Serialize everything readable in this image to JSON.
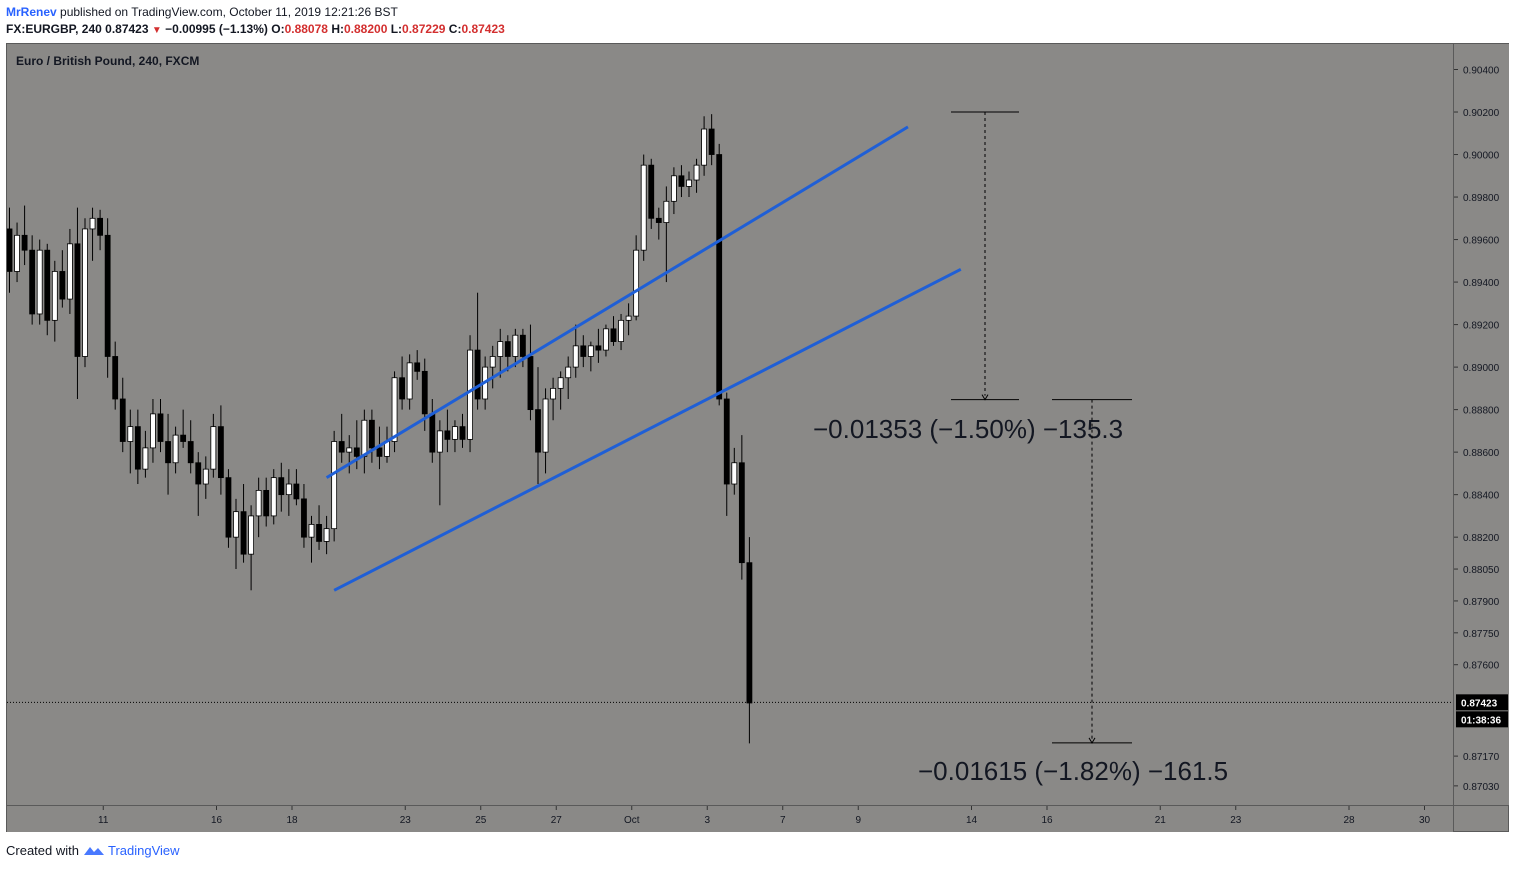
{
  "header": {
    "author": "MrRenev",
    "published_text": "published on TradingView.com, October 11, 2019 12:21:26 BST",
    "symbol": "FX:EURGBP, 240",
    "last": "0.87423",
    "change": "−0.00995 (−1.13%)",
    "open_label": "O:",
    "open": "0.88078",
    "high_label": "H:",
    "high": "0.88200",
    "low_label": "L:",
    "low": "0.87229",
    "close_label": "C:",
    "close": "0.87423"
  },
  "legend": "Euro / British Pound, 240, FXCM",
  "footer": {
    "created_with": "Created with",
    "brand": "TradingView"
  },
  "colors": {
    "background": "#8a8987",
    "channel": "#1f5fd6",
    "bull_body": "#ffffff",
    "bear_body": "#000000",
    "wick": "#000000",
    "price_tag": "#000000"
  },
  "chart_data": {
    "type": "candlestick",
    "interval": "240",
    "ylim": [
      0.8694,
      0.9052
    ],
    "y_ticks": [
      0.904,
      0.902,
      0.9,
      0.898,
      0.896,
      0.894,
      0.892,
      0.89,
      0.888,
      0.886,
      0.884,
      0.882,
      0.8805,
      0.879,
      0.8775,
      0.876,
      0.8717,
      0.8703
    ],
    "y_tick_labels": [
      "0.90400",
      "0.90200",
      "0.90000",
      "0.89800",
      "0.89600",
      "0.89400",
      "0.89200",
      "0.89000",
      "0.88800",
      "0.88600",
      "0.88400",
      "0.88200",
      "0.88050",
      "0.87900",
      "0.87750",
      "0.87600",
      "0.87170",
      "0.87030"
    ],
    "x_tick_labels": [
      "11",
      "16",
      "18",
      "23",
      "25",
      "27",
      "Oct",
      "3",
      "7",
      "9",
      "14",
      "16",
      "21",
      "23",
      "28",
      "30"
    ],
    "x_tick_bars": [
      5,
      20,
      30,
      45,
      55,
      65,
      75,
      85,
      95,
      105,
      120,
      130,
      145,
      155,
      170,
      180
    ],
    "last_price": 0.87423,
    "last_price_label": "0.87423",
    "countdown": "01:38:36",
    "candles": [
      [
        0.8965,
        0.8975,
        0.8935,
        0.8945
      ],
      [
        0.8945,
        0.8968,
        0.894,
        0.8962
      ],
      [
        0.8962,
        0.8976,
        0.8948,
        0.8955
      ],
      [
        0.8955,
        0.8962,
        0.892,
        0.8925
      ],
      [
        0.8925,
        0.896,
        0.892,
        0.8955
      ],
      [
        0.8955,
        0.8958,
        0.8915,
        0.8922
      ],
      [
        0.8922,
        0.895,
        0.8912,
        0.8945
      ],
      [
        0.8945,
        0.8955,
        0.8928,
        0.8932
      ],
      [
        0.8932,
        0.8965,
        0.8925,
        0.8958
      ],
      [
        0.8958,
        0.8975,
        0.8885,
        0.8905
      ],
      [
        0.8905,
        0.897,
        0.89,
        0.8965
      ],
      [
        0.8965,
        0.8975,
        0.895,
        0.897
      ],
      [
        0.897,
        0.8974,
        0.8955,
        0.8962
      ],
      [
        0.8962,
        0.897,
        0.8895,
        0.8905
      ],
      [
        0.8905,
        0.8912,
        0.888,
        0.8885
      ],
      [
        0.8885,
        0.8895,
        0.886,
        0.8865
      ],
      [
        0.8865,
        0.888,
        0.885,
        0.8872
      ],
      [
        0.8872,
        0.888,
        0.8845,
        0.8852
      ],
      [
        0.8852,
        0.887,
        0.8848,
        0.8862
      ],
      [
        0.8862,
        0.8885,
        0.8855,
        0.8878
      ],
      [
        0.8878,
        0.8885,
        0.886,
        0.8865
      ],
      [
        0.8865,
        0.8878,
        0.884,
        0.8855
      ],
      [
        0.8855,
        0.8872,
        0.885,
        0.8868
      ],
      [
        0.8868,
        0.888,
        0.8862,
        0.8865
      ],
      [
        0.8865,
        0.8875,
        0.885,
        0.8855
      ],
      [
        0.8855,
        0.886,
        0.883,
        0.8845
      ],
      [
        0.8845,
        0.8858,
        0.8838,
        0.8852
      ],
      [
        0.8852,
        0.8878,
        0.8848,
        0.8872
      ],
      [
        0.8872,
        0.8882,
        0.884,
        0.8848
      ],
      [
        0.8848,
        0.8852,
        0.8815,
        0.882
      ],
      [
        0.882,
        0.8838,
        0.8805,
        0.8832
      ],
      [
        0.8832,
        0.8845,
        0.8808,
        0.8812
      ],
      [
        0.8812,
        0.8835,
        0.8795,
        0.883
      ],
      [
        0.883,
        0.8848,
        0.882,
        0.8842
      ],
      [
        0.8842,
        0.8848,
        0.8825,
        0.883
      ],
      [
        0.883,
        0.8852,
        0.8826,
        0.8848
      ],
      [
        0.8848,
        0.8855,
        0.8832,
        0.884
      ],
      [
        0.884,
        0.8852,
        0.883,
        0.8845
      ],
      [
        0.8845,
        0.8852,
        0.8835,
        0.8838
      ],
      [
        0.8838,
        0.8845,
        0.8815,
        0.882
      ],
      [
        0.882,
        0.883,
        0.8808,
        0.8826
      ],
      [
        0.8826,
        0.8835,
        0.8814,
        0.8818
      ],
      [
        0.8818,
        0.883,
        0.8812,
        0.8824
      ],
      [
        0.8824,
        0.887,
        0.8818,
        0.8865
      ],
      [
        0.8865,
        0.8878,
        0.8855,
        0.886
      ],
      [
        0.886,
        0.8868,
        0.885,
        0.8862
      ],
      [
        0.8862,
        0.8875,
        0.8852,
        0.8858
      ],
      [
        0.8858,
        0.888,
        0.885,
        0.8875
      ],
      [
        0.8875,
        0.888,
        0.8855,
        0.8862
      ],
      [
        0.8862,
        0.8872,
        0.8852,
        0.8858
      ],
      [
        0.8858,
        0.8872,
        0.8855,
        0.8865
      ],
      [
        0.8865,
        0.8898,
        0.886,
        0.8895
      ],
      [
        0.8895,
        0.8905,
        0.888,
        0.8885
      ],
      [
        0.8885,
        0.8906,
        0.888,
        0.8902
      ],
      [
        0.8902,
        0.8908,
        0.8894,
        0.8898
      ],
      [
        0.8898,
        0.8904,
        0.887,
        0.8878
      ],
      [
        0.8878,
        0.8885,
        0.8855,
        0.886
      ],
      [
        0.886,
        0.8875,
        0.8835,
        0.887
      ],
      [
        0.887,
        0.888,
        0.886,
        0.8866
      ],
      [
        0.8866,
        0.8875,
        0.886,
        0.8872
      ],
      [
        0.8872,
        0.8878,
        0.8862,
        0.8866
      ],
      [
        0.8866,
        0.8915,
        0.886,
        0.8908
      ],
      [
        0.8908,
        0.8935,
        0.888,
        0.8885
      ],
      [
        0.8885,
        0.8905,
        0.888,
        0.89
      ],
      [
        0.89,
        0.891,
        0.889,
        0.8905
      ],
      [
        0.8905,
        0.8918,
        0.8895,
        0.8912
      ],
      [
        0.8912,
        0.8915,
        0.8898,
        0.8905
      ],
      [
        0.8905,
        0.8918,
        0.89,
        0.8915
      ],
      [
        0.8915,
        0.8918,
        0.89,
        0.8905
      ],
      [
        0.8905,
        0.892,
        0.8875,
        0.888
      ],
      [
        0.888,
        0.89,
        0.8845,
        0.886
      ],
      [
        0.886,
        0.889,
        0.885,
        0.8885
      ],
      [
        0.8885,
        0.8895,
        0.8875,
        0.889
      ],
      [
        0.889,
        0.8898,
        0.888,
        0.8895
      ],
      [
        0.8895,
        0.8905,
        0.8885,
        0.89
      ],
      [
        0.89,
        0.892,
        0.8895,
        0.891
      ],
      [
        0.891,
        0.8915,
        0.89,
        0.8905
      ],
      [
        0.8905,
        0.8912,
        0.8898,
        0.891
      ],
      [
        0.891,
        0.8918,
        0.8902,
        0.8908
      ],
      [
        0.8908,
        0.892,
        0.8905,
        0.8918
      ],
      [
        0.8918,
        0.8924,
        0.891,
        0.8912
      ],
      [
        0.8912,
        0.8925,
        0.8908,
        0.8922
      ],
      [
        0.8922,
        0.893,
        0.8915,
        0.8924
      ],
      [
        0.8924,
        0.8962,
        0.8922,
        0.8955
      ],
      [
        0.8955,
        0.9,
        0.895,
        0.8995
      ],
      [
        0.8995,
        0.8998,
        0.8965,
        0.897
      ],
      [
        0.897,
        0.8975,
        0.896,
        0.8968
      ],
      [
        0.8968,
        0.8985,
        0.894,
        0.8978
      ],
      [
        0.8978,
        0.8994,
        0.8972,
        0.899
      ],
      [
        0.899,
        0.8995,
        0.898,
        0.8985
      ],
      [
        0.8985,
        0.8992,
        0.898,
        0.8988
      ],
      [
        0.8988,
        0.8998,
        0.8982,
        0.8995
      ],
      [
        0.8995,
        0.9018,
        0.899,
        0.9012
      ],
      [
        0.9012,
        0.9019,
        0.8995,
        0.9
      ],
      [
        0.9,
        0.9005,
        0.8882,
        0.8885
      ],
      [
        0.8885,
        0.8888,
        0.883,
        0.8845
      ],
      [
        0.8845,
        0.8862,
        0.884,
        0.8855
      ],
      [
        0.8855,
        0.8868,
        0.88,
        0.8808
      ],
      [
        0.8808,
        0.882,
        0.8723,
        0.8742
      ]
    ],
    "channel": {
      "upper": [
        [
          0.8848,
          0.9013
        ]
      ],
      "lower": [
        [
          0.8795,
          0.8946
        ]
      ]
    },
    "measurements": [
      {
        "label": "−0.01353 (−1.50%) −135.3",
        "from": 0.902,
        "to": 0.88847
      },
      {
        "label": "−0.01615 (−1.82%) −161.5",
        "from": 0.88847,
        "to": 0.87232
      }
    ]
  }
}
